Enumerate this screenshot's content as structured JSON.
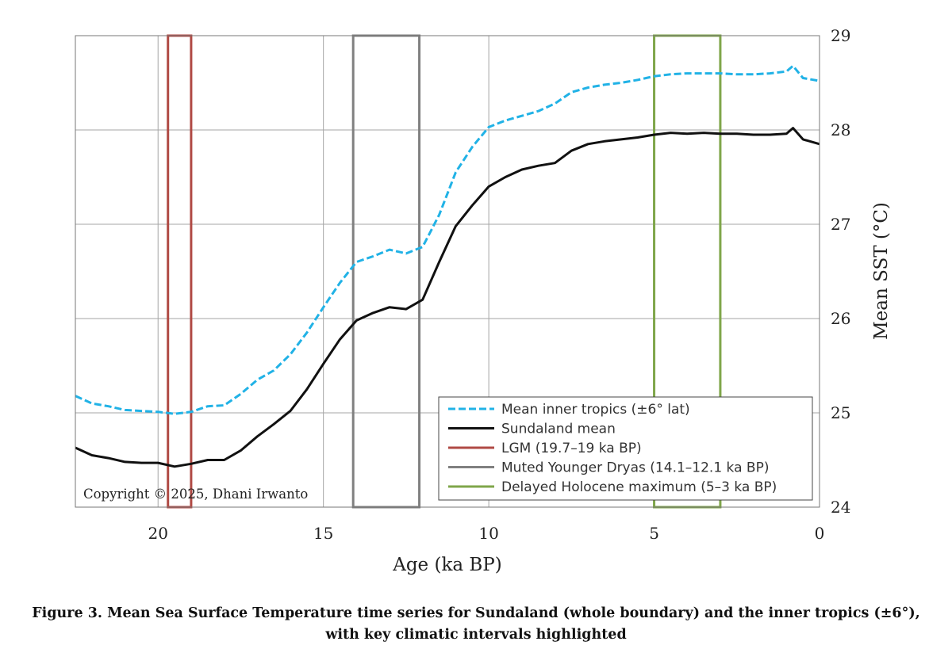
{
  "chart_data": {
    "type": "line",
    "xlabel": "Age (ka BP)",
    "ylabel": "Mean SST (°C)",
    "xlim": [
      22.5,
      0
    ],
    "ylim": [
      24,
      29
    ],
    "x_reversed": true,
    "y_axis_side": "right",
    "grid": true,
    "legend_placement": "bottom-right",
    "xticks": [
      20,
      15,
      10,
      5,
      0
    ],
    "yticks": [
      24,
      25,
      26,
      27,
      28,
      29
    ],
    "series": [
      {
        "name": "Mean inner tropics (±6° lat)",
        "color": "#21b2e6",
        "dash": "dashed",
        "x": [
          22.5,
          22.0,
          21.5,
          21.0,
          20.5,
          20.0,
          19.5,
          19.0,
          18.5,
          18.0,
          17.5,
          17.0,
          16.5,
          16.0,
          15.5,
          15.0,
          14.5,
          14.0,
          13.5,
          13.0,
          12.5,
          12.0,
          11.5,
          11.0,
          10.5,
          10.0,
          9.5,
          9.0,
          8.5,
          8.0,
          7.5,
          7.0,
          6.5,
          6.0,
          5.5,
          5.0,
          4.5,
          4.0,
          3.5,
          3.0,
          2.5,
          2.0,
          1.5,
          1.0,
          0.8,
          0.5,
          0.0
        ],
        "y": [
          25.18,
          25.1,
          25.07,
          25.03,
          25.02,
          25.01,
          24.99,
          25.01,
          25.07,
          25.08,
          25.2,
          25.35,
          25.45,
          25.62,
          25.85,
          26.12,
          26.38,
          26.6,
          26.66,
          26.73,
          26.69,
          26.76,
          27.1,
          27.55,
          27.82,
          28.03,
          28.1,
          28.15,
          28.2,
          28.28,
          28.4,
          28.45,
          28.48,
          28.5,
          28.53,
          28.57,
          28.59,
          28.6,
          28.6,
          28.6,
          28.59,
          28.59,
          28.6,
          28.62,
          28.68,
          28.55,
          28.52
        ]
      },
      {
        "name": "Sundaland mean",
        "color": "#111111",
        "dash": "solid",
        "x": [
          22.5,
          22.0,
          21.5,
          21.0,
          20.5,
          20.0,
          19.5,
          19.0,
          18.5,
          18.0,
          17.5,
          17.0,
          16.5,
          16.0,
          15.5,
          15.0,
          14.5,
          14.0,
          13.5,
          13.0,
          12.5,
          12.0,
          11.5,
          11.0,
          10.5,
          10.0,
          9.5,
          9.0,
          8.5,
          8.0,
          7.5,
          7.0,
          6.5,
          6.0,
          5.5,
          5.0,
          4.5,
          4.0,
          3.5,
          3.0,
          2.5,
          2.0,
          1.5,
          1.0,
          0.8,
          0.5,
          0.0
        ],
        "y": [
          24.63,
          24.55,
          24.52,
          24.48,
          24.47,
          24.47,
          24.43,
          24.46,
          24.5,
          24.5,
          24.6,
          24.75,
          24.88,
          25.02,
          25.25,
          25.52,
          25.78,
          25.98,
          26.06,
          26.12,
          26.1,
          26.2,
          26.6,
          26.98,
          27.2,
          27.4,
          27.5,
          27.58,
          27.62,
          27.65,
          27.78,
          27.85,
          27.88,
          27.9,
          27.92,
          27.95,
          27.97,
          27.96,
          27.97,
          27.96,
          27.96,
          27.95,
          27.95,
          27.96,
          28.02,
          27.9,
          27.85
        ]
      }
    ],
    "intervals": [
      {
        "name": "LGM (19.7–19 ka BP)",
        "color": "#b04a44",
        "x": [
          19.7,
          19.0
        ]
      },
      {
        "name": "Muted Younger Dryas (14.1–12.1 ka BP)",
        "color": "#808080",
        "x": [
          14.1,
          12.1
        ]
      },
      {
        "name": "Delayed Holocene maximum (5–3 ka BP)",
        "color": "#7fa64a",
        "x": [
          5.0,
          3.0
        ]
      }
    ]
  },
  "copyright": "Copyright © 2025, Dhani Irwanto",
  "caption": "Figure 3. Mean Sea Surface Temperature time series for Sundaland (whole boundary) and the inner tropics (±6°), with key climatic intervals highlighted"
}
